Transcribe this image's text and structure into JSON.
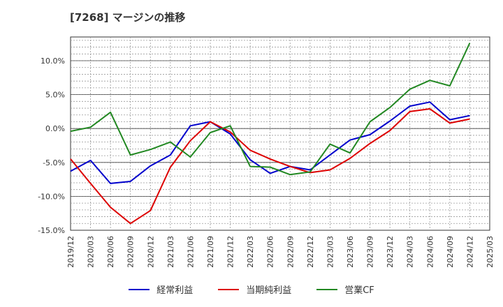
{
  "chart_data": {
    "type": "line",
    "title": "[7268]  マージンの推移",
    "x": [
      "2019/12",
      "2020/03",
      "2020/06",
      "2020/09",
      "2020/12",
      "2021/03",
      "2021/06",
      "2021/09",
      "2021/12",
      "2022/03",
      "2022/06",
      "2022/09",
      "2022/12",
      "2023/03",
      "2023/06",
      "2023/09",
      "2023/12",
      "2024/03",
      "2024/06",
      "2024/09",
      "2024/12",
      "2025/03"
    ],
    "ylim": [
      -15,
      13.5
    ],
    "yticks": [
      -15,
      -10,
      -5,
      0,
      5,
      10
    ],
    "ytick_labels": [
      "-15.0%",
      "-10.0%",
      "-5.0%",
      "0.0%",
      "5.0%",
      "10.0%"
    ],
    "grid": true,
    "legend_position": "bottom",
    "series": [
      {
        "name": "経常利益",
        "color": "#0000cc",
        "values": [
          -6.3,
          -4.7,
          -8.1,
          -7.8,
          -5.5,
          -3.9,
          0.4,
          1.0,
          -0.8,
          -4.6,
          -6.6,
          -5.6,
          -6.1,
          -3.9,
          -1.7,
          -0.9,
          1.1,
          3.3,
          3.9,
          1.3,
          1.9,
          null
        ]
      },
      {
        "name": "当期純利益",
        "color": "#dd0000",
        "values": [
          -4.5,
          -8.1,
          -11.6,
          -14.0,
          -12.1,
          -5.7,
          -1.8,
          1.0,
          -0.5,
          -3.2,
          -4.5,
          -5.6,
          -6.5,
          -6.1,
          -4.4,
          -2.2,
          -0.3,
          2.5,
          2.9,
          0.8,
          1.4,
          null
        ]
      },
      {
        "name": "営業CF",
        "color": "#228822",
        "values": [
          -0.4,
          0.2,
          2.4,
          -3.9,
          -3.1,
          -2.0,
          -4.2,
          -0.6,
          0.4,
          -5.6,
          -5.7,
          -6.8,
          -6.4,
          -2.3,
          -3.6,
          1.0,
          3.1,
          5.8,
          7.1,
          6.3,
          12.6,
          null
        ]
      }
    ]
  }
}
